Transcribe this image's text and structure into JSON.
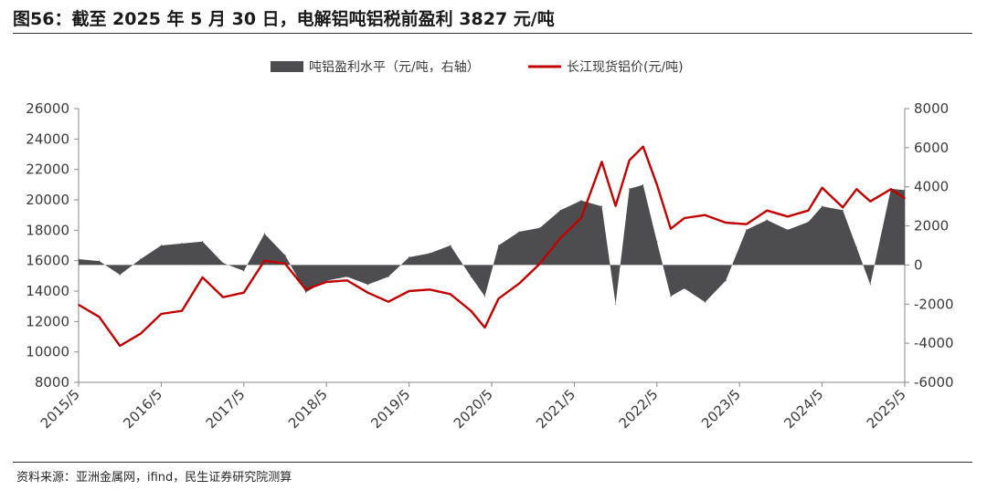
{
  "figure": {
    "title": "图56：截至 2025 年 5 月 30 日，电解铝吨铝税前盈利 3827 元/吨",
    "source": "资料来源：亚洲金属网，ifind，民生证券研究院测算"
  },
  "chart_data": {
    "type": "line+area",
    "legend": [
      {
        "name": "吨铝盈利水平（元/吨，右轴）",
        "color": "#4d4d4f",
        "kind": "area"
      },
      {
        "name": "长江现货铝价(元/吨)",
        "color": "#c00000",
        "kind": "line"
      }
    ],
    "legend_position": "top-center",
    "x_ticks": [
      "2015/5",
      "2016/5",
      "2017/5",
      "2018/5",
      "2019/5",
      "2020/5",
      "2021/5",
      "2022/5",
      "2023/5",
      "2024/5",
      "2025/5"
    ],
    "x_range": [
      "2015/5",
      "2025/5"
    ],
    "left_axis": {
      "ticks": [
        "8000",
        "10000",
        "12000",
        "14000",
        "16000",
        "18000",
        "20000",
        "22000",
        "24000",
        "26000"
      ],
      "range": [
        8000,
        26000
      ]
    },
    "right_axis": {
      "ticks": [
        "-6000",
        "-4000",
        "-2000",
        "0",
        "2000",
        "4000",
        "6000",
        "8000"
      ],
      "range": [
        -6000,
        8000
      ]
    },
    "series": [
      {
        "name": "长江现货铝价(元/吨)",
        "axis": "left",
        "points": [
          [
            "2015/5",
            13100
          ],
          [
            "2015/8",
            12300
          ],
          [
            "2015/11",
            10400
          ],
          [
            "2016/2",
            11200
          ],
          [
            "2016/5",
            12500
          ],
          [
            "2016/8",
            12700
          ],
          [
            "2016/11",
            14900
          ],
          [
            "2017/2",
            13600
          ],
          [
            "2017/5",
            13900
          ],
          [
            "2017/8",
            16000
          ],
          [
            "2017/11",
            15800
          ],
          [
            "2018/2",
            14100
          ],
          [
            "2018/5",
            14600
          ],
          [
            "2018/8",
            14700
          ],
          [
            "2018/11",
            13900
          ],
          [
            "2019/2",
            13300
          ],
          [
            "2019/5",
            14000
          ],
          [
            "2019/8",
            14100
          ],
          [
            "2019/11",
            13800
          ],
          [
            "2020/2",
            12700
          ],
          [
            "2020/4",
            11600
          ],
          [
            "2020/6",
            13500
          ],
          [
            "2020/9",
            14500
          ],
          [
            "2020/12",
            15800
          ],
          [
            "2021/3",
            17500
          ],
          [
            "2021/6",
            18800
          ],
          [
            "2021/9",
            22500
          ],
          [
            "2021/11",
            19600
          ],
          [
            "2022/1",
            22600
          ],
          [
            "2022/3",
            23500
          ],
          [
            "2022/5",
            21000
          ],
          [
            "2022/7",
            18100
          ],
          [
            "2022/9",
            18800
          ],
          [
            "2022/12",
            19000
          ],
          [
            "2023/3",
            18500
          ],
          [
            "2023/6",
            18400
          ],
          [
            "2023/9",
            19300
          ],
          [
            "2023/12",
            18900
          ],
          [
            "2024/3",
            19300
          ],
          [
            "2024/5",
            20800
          ],
          [
            "2024/8",
            19500
          ],
          [
            "2024/10",
            20700
          ],
          [
            "2024/12",
            19900
          ],
          [
            "2025/3",
            20700
          ],
          [
            "2025/5",
            20100
          ]
        ]
      },
      {
        "name": "吨铝盈利水平（元/吨，右轴）",
        "axis": "right",
        "points": [
          [
            "2015/5",
            300
          ],
          [
            "2015/8",
            200
          ],
          [
            "2015/11",
            -500
          ],
          [
            "2016/2",
            300
          ],
          [
            "2016/5",
            1000
          ],
          [
            "2016/8",
            1100
          ],
          [
            "2016/11",
            1200
          ],
          [
            "2017/2",
            100
          ],
          [
            "2017/5",
            -300
          ],
          [
            "2017/8",
            1600
          ],
          [
            "2017/11",
            500
          ],
          [
            "2018/2",
            -1400
          ],
          [
            "2018/5",
            -800
          ],
          [
            "2018/8",
            -600
          ],
          [
            "2018/11",
            -1000
          ],
          [
            "2019/2",
            -600
          ],
          [
            "2019/5",
            400
          ],
          [
            "2019/8",
            600
          ],
          [
            "2019/11",
            1000
          ],
          [
            "2020/2",
            -600
          ],
          [
            "2020/4",
            -1600
          ],
          [
            "2020/6",
            1000
          ],
          [
            "2020/9",
            1700
          ],
          [
            "2020/12",
            1900
          ],
          [
            "2021/3",
            2800
          ],
          [
            "2021/6",
            3300
          ],
          [
            "2021/9",
            3000
          ],
          [
            "2021/11",
            -2000
          ],
          [
            "2022/1",
            3900
          ],
          [
            "2022/3",
            4100
          ],
          [
            "2022/5",
            1200
          ],
          [
            "2022/7",
            -1600
          ],
          [
            "2022/9",
            -1200
          ],
          [
            "2022/12",
            -1900
          ],
          [
            "2023/3",
            -800
          ],
          [
            "2023/6",
            1800
          ],
          [
            "2023/9",
            2300
          ],
          [
            "2023/12",
            1800
          ],
          [
            "2024/3",
            2200
          ],
          [
            "2024/5",
            3000
          ],
          [
            "2024/8",
            2800
          ],
          [
            "2024/10",
            900
          ],
          [
            "2024/12",
            -1000
          ],
          [
            "2025/3",
            3900
          ],
          [
            "2025/5",
            3827
          ]
        ]
      }
    ]
  }
}
